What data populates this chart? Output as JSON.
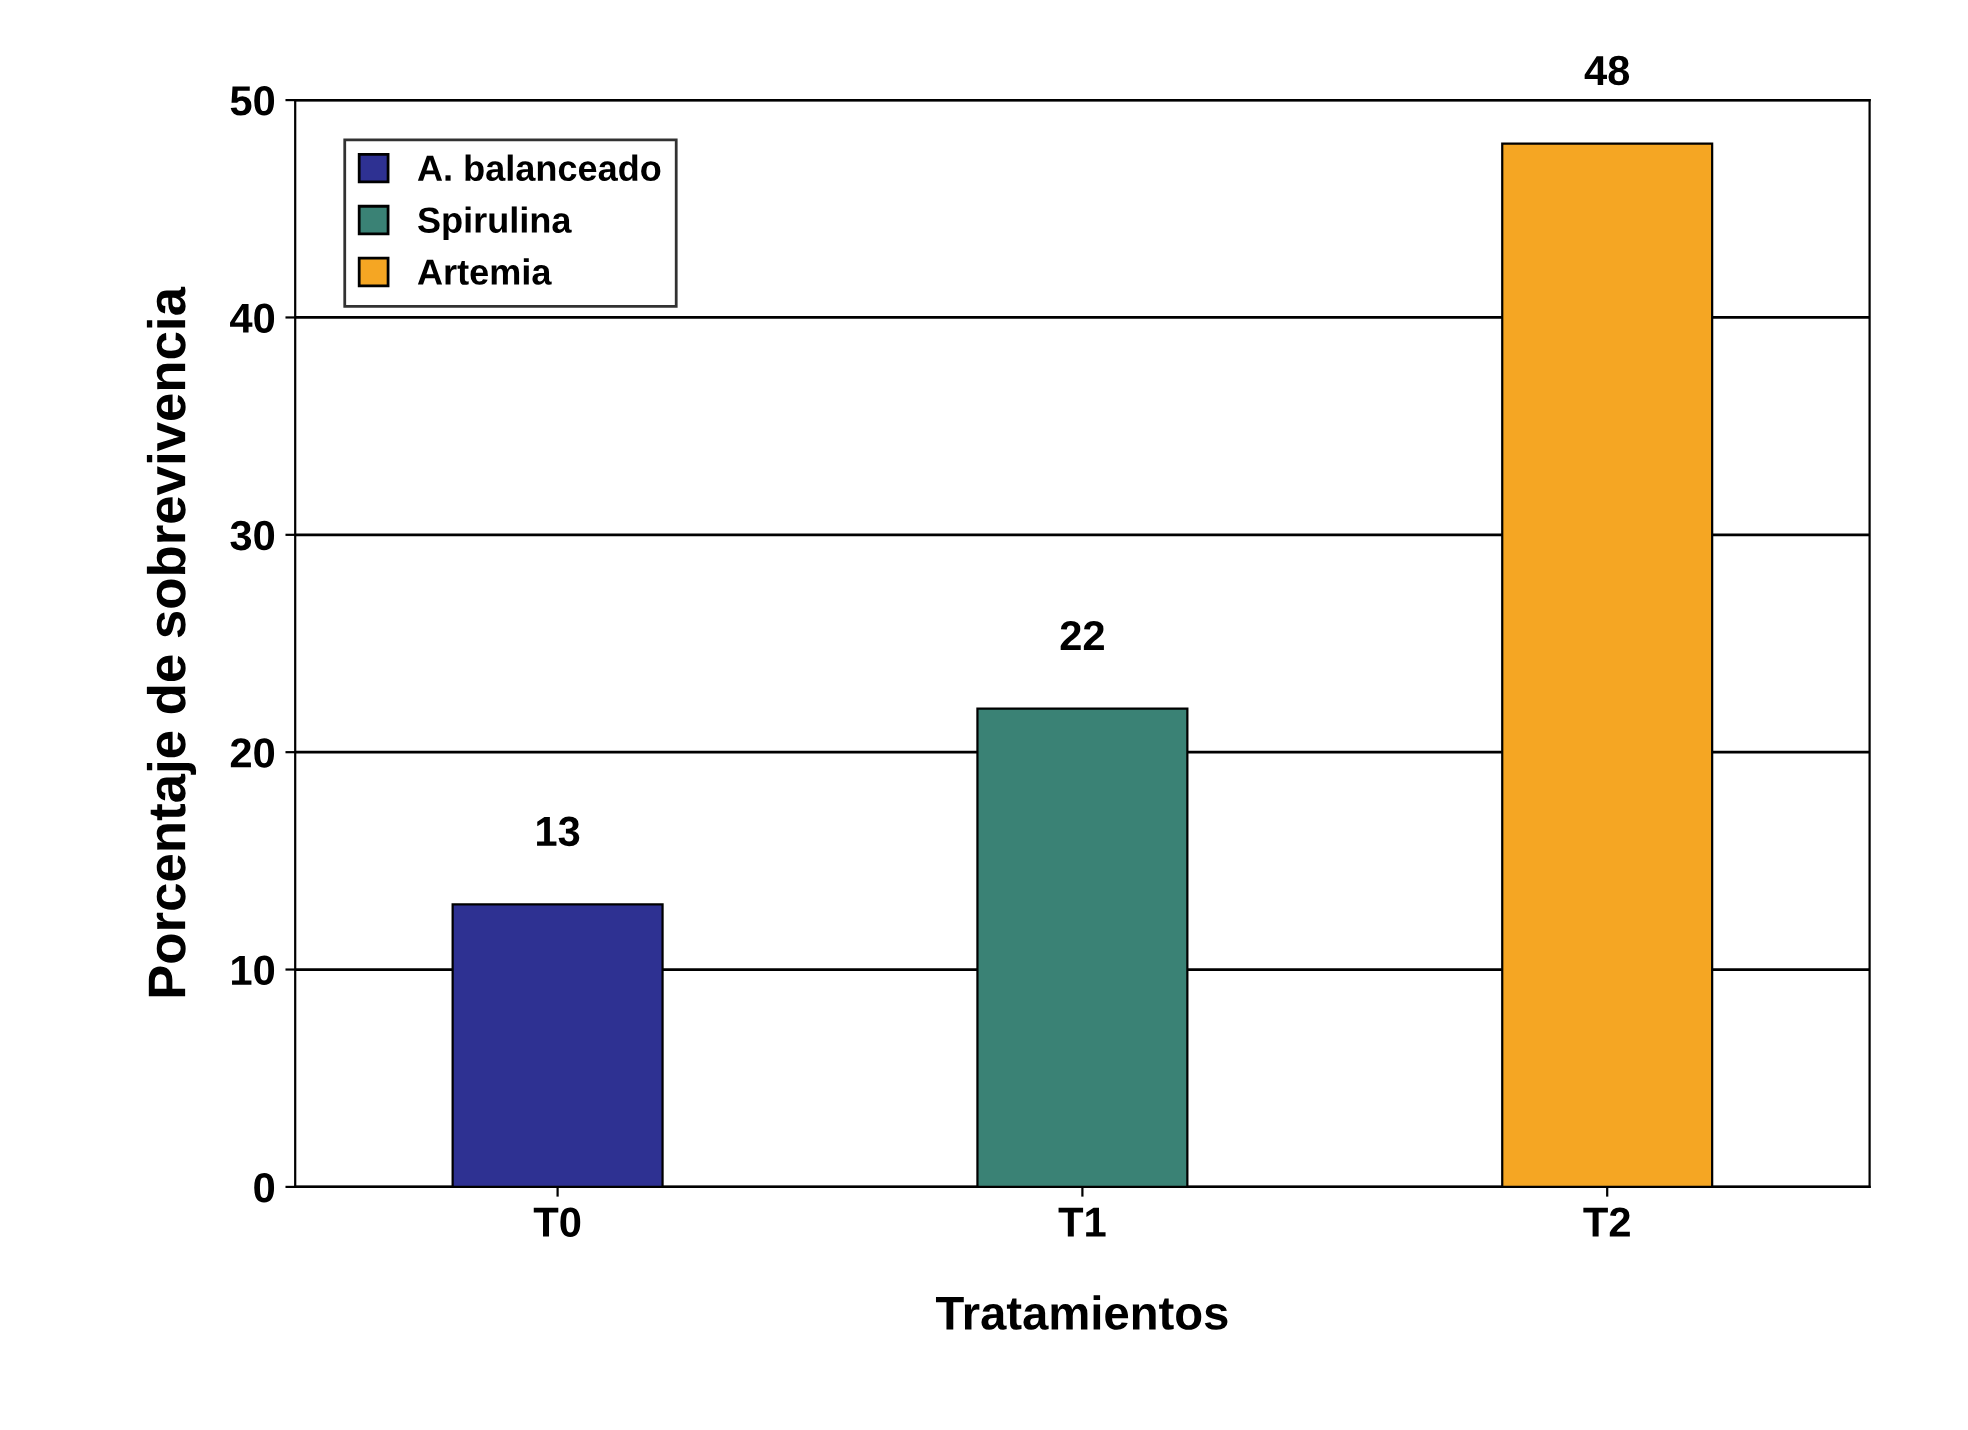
{
  "chart_data": {
    "type": "bar",
    "xlabel": "Tratamientos",
    "ylabel": "Porcentaje de sobrevivencia",
    "categories": [
      "T0",
      "T1",
      "T2"
    ],
    "series": [
      {
        "name": "A. balanceado",
        "color": "#2e3192",
        "values": [
          13,
          null,
          null
        ]
      },
      {
        "name": "Spirulina",
        "color": "#3a8275",
        "values": [
          null,
          22,
          null
        ]
      },
      {
        "name": "Artemia",
        "color": "#f5a623",
        "values": [
          null,
          null,
          48
        ]
      }
    ],
    "ylim": [
      0,
      50
    ],
    "yticks": [
      0,
      10,
      20,
      30,
      40,
      50
    ],
    "grid": "y",
    "legend": "top left",
    "data_labels": true
  }
}
